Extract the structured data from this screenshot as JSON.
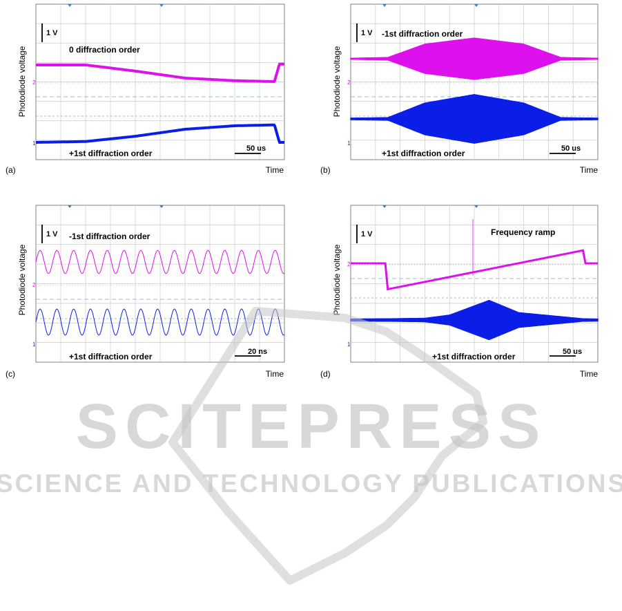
{
  "figure": {
    "time_label": "Time",
    "ylabel": "Photodiode voltage",
    "scale_label": "1 V",
    "channel_markers": {
      "ch1": "1",
      "ch2": "2"
    }
  },
  "colors": {
    "ch2_trace": "#dd10ee",
    "ch1_trace": "#0a1ee8",
    "grid": "#c8c8c8",
    "grid_dot": "#b4b4b4",
    "frame": "#7f7f7f",
    "marker": "#3a82c6",
    "watermark": "#c4c4c4"
  },
  "chart_data": [
    {
      "panel": "(a)",
      "type": "line",
      "xlabel": "Time",
      "ylabel": "Photodiode voltage",
      "scale_bar_v": "1 V",
      "time_scale_bar": "50 us",
      "xlim": [
        0,
        500
      ],
      "x_unit": "us",
      "series": [
        {
          "name": "0 diffraction order",
          "color": "#dd10ee",
          "kind": "envelope",
          "x": [
            0,
            100,
            200,
            300,
            400,
            480,
            490,
            500
          ],
          "values": [
            2.35,
            2.35,
            2.0,
            1.6,
            1.45,
            1.4,
            2.4,
            2.4
          ]
        },
        {
          "name": "+1st diffraction order",
          "color": "#0a1ee8",
          "kind": "envelope",
          "x": [
            0,
            100,
            200,
            300,
            400,
            480,
            490,
            500
          ],
          "values": [
            0.0,
            0.05,
            0.35,
            0.75,
            0.95,
            1.0,
            0.0,
            0.0
          ]
        }
      ]
    },
    {
      "panel": "(b)",
      "type": "line",
      "xlabel": "Time",
      "ylabel": "Photodiode voltage",
      "scale_bar_v": "1 V",
      "time_scale_bar": "50 us",
      "xlim": [
        0,
        500
      ],
      "x_unit": "us",
      "series": [
        {
          "name": "-1st diffraction order",
          "color": "#dd10ee",
          "kind": "oscillation_envelope",
          "x": [
            0,
            75,
            150,
            250,
            350,
            425,
            500
          ],
          "amplitude": [
            0.02,
            0.05,
            0.6,
            0.85,
            0.6,
            0.05,
            0.02
          ],
          "offset": 2.4
        },
        {
          "name": "+1st diffraction order",
          "color": "#0a1ee8",
          "kind": "oscillation_envelope",
          "x": [
            0,
            75,
            150,
            250,
            350,
            425,
            500
          ],
          "amplitude": [
            0.03,
            0.05,
            0.65,
            1.0,
            0.65,
            0.05,
            0.03
          ],
          "offset": 0.35
        }
      ]
    },
    {
      "panel": "(c)",
      "type": "line",
      "xlabel": "Time",
      "ylabel": "Photodiode voltage",
      "scale_bar_v": "1 V",
      "time_scale_bar": "20 ns",
      "xlim": [
        0,
        200
      ],
      "x_unit": "ns",
      "series": [
        {
          "name": "-1st diffraction order",
          "color": "#dd10ee",
          "kind": "sine",
          "cycles": 14.8,
          "amplitude": 0.62,
          "offset": 1.75
        },
        {
          "name": "+1st diffraction order",
          "color": "#0a1ee8",
          "kind": "sine",
          "cycles": 14.8,
          "amplitude": 0.7,
          "offset": 0.02
        }
      ]
    },
    {
      "panel": "(d)",
      "type": "line",
      "xlabel": "Time",
      "ylabel": "Photodiode voltage",
      "scale_bar_v": "1 V",
      "time_scale_bar": "50 us",
      "xlim": [
        0,
        500
      ],
      "x_unit": "us",
      "annotation": "Frequency ramp",
      "series": [
        {
          "name": "Frequency ramp",
          "color": "#dd10ee",
          "kind": "ramp",
          "x": [
            0,
            70,
            75,
            470,
            475,
            500
          ],
          "values": [
            2.05,
            2.05,
            0.85,
            2.65,
            2.05,
            2.05
          ]
        },
        {
          "name": "+1st diffraction order",
          "color": "#0a1ee8",
          "kind": "oscillation_envelope",
          "x": [
            0,
            75,
            150,
            200,
            280,
            340,
            470,
            500
          ],
          "amplitude": [
            0.04,
            0.05,
            0.07,
            0.2,
            0.8,
            0.3,
            0.05,
            0.04
          ],
          "offset": 0.55
        }
      ]
    }
  ],
  "watermark": {
    "title": "SCITEPRESS",
    "subtitle": "SCIENCE AND TECHNOLOGY PUBLICATIONS"
  }
}
